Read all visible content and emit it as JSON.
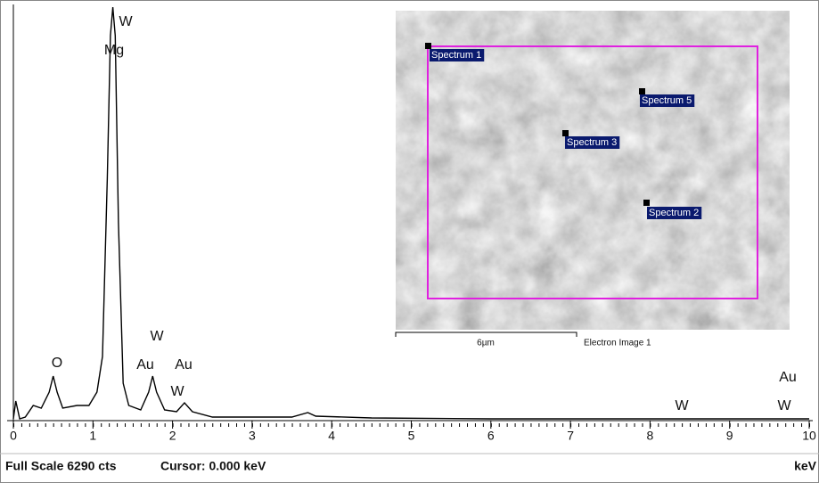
{
  "chart_data": {
    "type": "line",
    "x": [
      0.0,
      0.03,
      0.08,
      0.15,
      0.25,
      0.35,
      0.45,
      0.5,
      0.55,
      0.62,
      0.8,
      0.95,
      1.05,
      1.12,
      1.18,
      1.22,
      1.25,
      1.28,
      1.32,
      1.38,
      1.45,
      1.6,
      1.7,
      1.75,
      1.8,
      1.9,
      2.05,
      2.15,
      2.25,
      2.5,
      3.0,
      3.5,
      3.7,
      3.8,
      4.5,
      6.0,
      8.0,
      10.0
    ],
    "series": [
      {
        "color": "#000000",
        "values": [
          27,
          298,
          27,
          54,
          230,
          190,
          434,
          678,
          434,
          190,
          230,
          230,
          434,
          976,
          3687,
          5858,
          6290,
          5858,
          3010,
          570,
          230,
          163,
          434,
          678,
          434,
          163,
          136,
          271,
          136,
          54,
          54,
          54,
          122,
          68,
          41,
          27,
          27,
          27
        ]
      }
    ],
    "xlim": [
      0,
      10
    ],
    "xticks": [
      0,
      1,
      2,
      3,
      4,
      5,
      6,
      7,
      8,
      9,
      10
    ],
    "ylim": [
      0,
      6290
    ],
    "x_label": "keV",
    "annotations": [
      "W",
      "Mg",
      "O",
      "W",
      "Au",
      "Au",
      "W",
      "W",
      "Au",
      "W"
    ],
    "footer": [
      "Full Scale 6290 cts",
      "Cursor: 0.000 keV"
    ],
    "inset": {
      "spectra": [
        "Spectrum 1",
        "Spectrum 5",
        "Spectrum 3",
        "Spectrum 2"
      ],
      "scale_bar": "6µm",
      "caption": "Electron Image 1"
    }
  }
}
